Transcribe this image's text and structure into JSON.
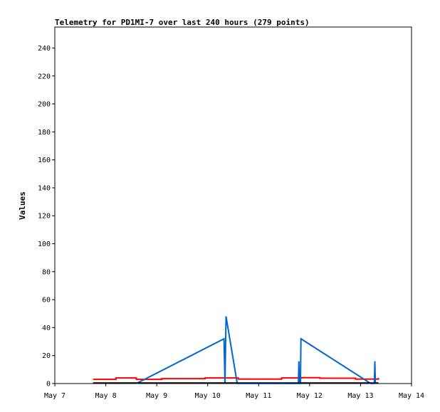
{
  "chart_data": {
    "type": "line",
    "title": "Telemetry for PD1MI-7 over last 240 hours (279 points)",
    "xlabel": "",
    "ylabel": "Values",
    "x_ticks": [
      "May 7",
      "May 8",
      "May 9",
      "May 10",
      "May 11",
      "May 12",
      "May 13",
      "May 14"
    ],
    "x_range": [
      0,
      7
    ],
    "ylim": [
      0,
      255
    ],
    "y_ticks": [
      0,
      20,
      40,
      60,
      80,
      100,
      120,
      140,
      160,
      180,
      200,
      220,
      240
    ],
    "grid": false,
    "series": [
      {
        "color": "#ff0000",
        "points": [
          [
            0.75,
            3
          ],
          [
            1.2,
            3
          ],
          [
            1.2,
            4
          ],
          [
            1.6,
            4
          ],
          [
            1.6,
            3
          ],
          [
            2.1,
            3
          ],
          [
            2.1,
            3.5
          ],
          [
            2.95,
            3.5
          ],
          [
            2.95,
            4
          ],
          [
            3.6,
            4
          ],
          [
            3.6,
            3.2
          ],
          [
            4.45,
            3.2
          ],
          [
            4.45,
            4
          ],
          [
            4.85,
            4
          ],
          [
            4.85,
            4.2
          ],
          [
            5.2,
            4.2
          ],
          [
            5.2,
            3.8
          ],
          [
            5.9,
            3.8
          ],
          [
            5.9,
            3.2
          ],
          [
            6.35,
            3.2
          ],
          [
            6.35,
            4
          ]
        ]
      },
      {
        "color": "#0066cc",
        "points": [
          [
            1.6,
            0
          ],
          [
            3.32,
            32
          ],
          [
            3.34,
            0
          ],
          [
            3.36,
            48
          ],
          [
            3.58,
            0
          ],
          [
            4.78,
            0
          ],
          [
            4.79,
            16
          ],
          [
            4.8,
            0
          ],
          [
            4.82,
            0
          ],
          [
            4.83,
            32
          ],
          [
            6.2,
            0
          ],
          [
            6.27,
            0
          ],
          [
            6.28,
            16
          ],
          [
            6.29,
            0
          ]
        ]
      },
      {
        "color": "#000000",
        "points": [
          [
            0.75,
            0.5
          ],
          [
            6.35,
            0.5
          ]
        ]
      }
    ]
  }
}
